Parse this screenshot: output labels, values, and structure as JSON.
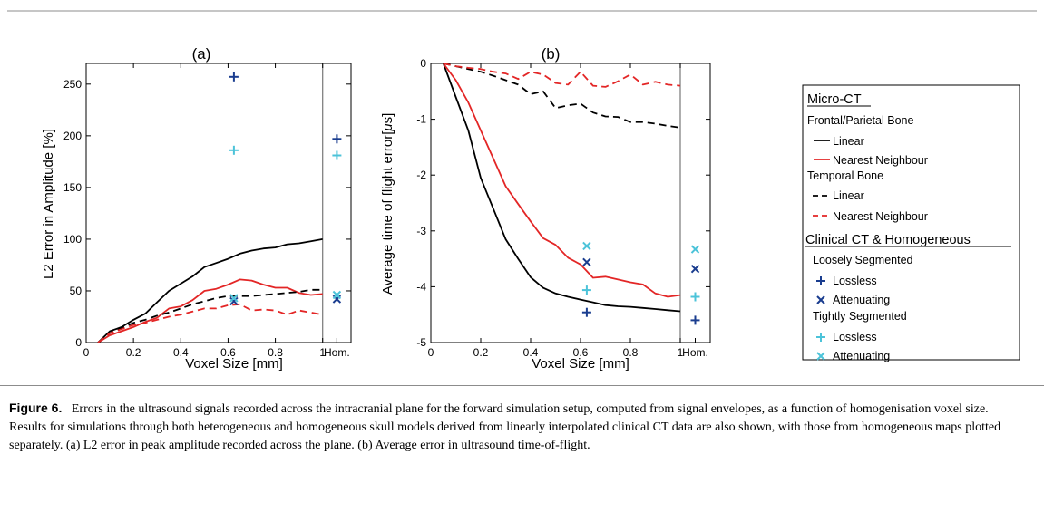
{
  "colors": {
    "dark_blue": "#1a3d8f",
    "light_blue": "#4cc3d9",
    "red": "#e32626",
    "black": "#000000"
  },
  "chart_data": [
    {
      "type": "line",
      "title": "(a)",
      "xlabel": "Voxel Size [mm]",
      "ylabel": "L2 Error in Amplitude [%]",
      "xlim": [
        0,
        1.12
      ],
      "ylim": [
        0,
        270
      ],
      "xticks": [
        0,
        0.2,
        0.4,
        0.6,
        0.8,
        1
      ],
      "xtick_labels": [
        "0",
        "0.2",
        "0.4",
        "0.6",
        "0.8",
        "1"
      ],
      "extra_xtick_label": "Hom.",
      "hom_x": 1.06,
      "yticks": [
        0,
        50,
        100,
        150,
        200,
        250
      ],
      "ytick_labels": [
        "0",
        "50",
        "100",
        "150",
        "200",
        "250"
      ],
      "series": [
        {
          "group": "Frontal/Parietal Bone",
          "name": "Linear",
          "color": "#000000",
          "dash": false,
          "x": [
            0.05,
            0.1,
            0.15,
            0.2,
            0.25,
            0.3,
            0.35,
            0.4,
            0.45,
            0.5,
            0.55,
            0.6,
            0.65,
            0.7,
            0.75,
            0.8,
            0.85,
            0.9,
            0.95,
            1.0
          ],
          "y": [
            0,
            11,
            15,
            22,
            28,
            39,
            50,
            57,
            64,
            73,
            77,
            81,
            86,
            89,
            91,
            92,
            95,
            96,
            98,
            100
          ]
        },
        {
          "group": "Frontal/Parietal Bone",
          "name": "Nearest Neighbour",
          "color": "#e32626",
          "dash": false,
          "x": [
            0.05,
            0.1,
            0.15,
            0.2,
            0.25,
            0.3,
            0.35,
            0.4,
            0.45,
            0.5,
            0.55,
            0.6,
            0.65,
            0.7,
            0.75,
            0.8,
            0.85,
            0.9,
            0.95,
            1.0
          ],
          "y": [
            0,
            7,
            11,
            15,
            20,
            24,
            33,
            35,
            41,
            50,
            52,
            56,
            61,
            60,
            56,
            53,
            53,
            48,
            46,
            47
          ]
        },
        {
          "group": "Temporal Bone",
          "name": "Linear",
          "color": "#000000",
          "dash": true,
          "x": [
            0.05,
            0.1,
            0.15,
            0.2,
            0.25,
            0.3,
            0.35,
            0.4,
            0.45,
            0.5,
            0.55,
            0.6,
            0.65,
            0.7,
            0.75,
            0.8,
            0.85,
            0.9,
            0.95,
            1.0
          ],
          "y": [
            0,
            9,
            14,
            19,
            22,
            26,
            29,
            33,
            37,
            40,
            43,
            45,
            45,
            45,
            46,
            47,
            48,
            49,
            51,
            51
          ]
        },
        {
          "group": "Temporal Bone",
          "name": "Nearest Neighbour",
          "color": "#e32626",
          "dash": true,
          "x": [
            0.05,
            0.1,
            0.15,
            0.2,
            0.25,
            0.3,
            0.35,
            0.4,
            0.45,
            0.5,
            0.55,
            0.6,
            0.65,
            0.7,
            0.75,
            0.8,
            0.85,
            0.9,
            0.95,
            1.0
          ],
          "y": [
            0,
            9,
            13,
            17,
            19,
            22,
            25,
            27,
            30,
            33,
            33,
            36,
            37,
            31,
            32,
            31,
            27,
            31,
            29,
            27
          ]
        }
      ],
      "points": [
        {
          "group": "Loosely Segmented",
          "name": "Lossless",
          "marker": "plus",
          "color": "#1a3d8f",
          "x": 0.625,
          "y": 257
        },
        {
          "group": "Tightly Segmented",
          "name": "Lossless",
          "marker": "plus",
          "color": "#4cc3d9",
          "x": 0.625,
          "y": 186
        },
        {
          "group": "Loosely Segmented",
          "name": "Attenuating",
          "marker": "cross",
          "color": "#1a3d8f",
          "x": 0.625,
          "y": 40
        },
        {
          "group": "Tightly Segmented",
          "name": "Attenuating",
          "marker": "cross",
          "color": "#4cc3d9",
          "x": 0.625,
          "y": 43
        },
        {
          "group": "Loosely Segmented",
          "name": "Lossless",
          "marker": "plus",
          "color": "#1a3d8f",
          "x": 1.06,
          "y": 197
        },
        {
          "group": "Tightly Segmented",
          "name": "Lossless",
          "marker": "plus",
          "color": "#4cc3d9",
          "x": 1.06,
          "y": 181
        },
        {
          "group": "Loosely Segmented",
          "name": "Attenuating",
          "marker": "cross",
          "color": "#1a3d8f",
          "x": 1.06,
          "y": 42
        },
        {
          "group": "Tightly Segmented",
          "name": "Attenuating",
          "marker": "cross",
          "color": "#4cc3d9",
          "x": 1.06,
          "y": 46
        }
      ]
    },
    {
      "type": "line",
      "title": "(b)",
      "xlabel": "Voxel Size [mm]",
      "ylabel": "Average time of flight  error[",
      "ylabel_unit": "μ",
      "ylabel_unit_tail": "s]",
      "xlim": [
        0,
        1.12
      ],
      "ylim": [
        -5,
        0
      ],
      "xticks": [
        0,
        0.2,
        0.4,
        0.6,
        0.8,
        1
      ],
      "xtick_labels": [
        "0",
        "0.2",
        "0.4",
        "0.6",
        "0.8",
        "1"
      ],
      "extra_xtick_label": "Hom.",
      "hom_x": 1.06,
      "yticks": [
        0,
        -1,
        -2,
        -3,
        -4,
        -5
      ],
      "ytick_labels": [
        "0",
        "-1",
        "-2",
        "-3",
        "-4",
        "-5"
      ],
      "series": [
        {
          "group": "Frontal/Parietal Bone",
          "name": "Linear",
          "color": "#000000",
          "dash": false,
          "x": [
            0.05,
            0.1,
            0.15,
            0.2,
            0.25,
            0.3,
            0.35,
            0.4,
            0.45,
            0.5,
            0.55,
            0.6,
            0.65,
            0.7,
            0.75,
            0.8,
            0.85,
            0.9,
            0.95,
            1.0
          ],
          "y": [
            0,
            -0.6,
            -1.2,
            -2.05,
            -2.6,
            -3.15,
            -3.5,
            -3.83,
            -4.02,
            -4.12,
            -4.18,
            -4.23,
            -4.28,
            -4.33,
            -4.35,
            -4.36,
            -4.38,
            -4.4,
            -4.42,
            -4.44
          ]
        },
        {
          "group": "Frontal/Parietal Bone",
          "name": "Nearest Neighbour",
          "color": "#e32626",
          "dash": false,
          "x": [
            0.05,
            0.1,
            0.15,
            0.2,
            0.25,
            0.3,
            0.35,
            0.4,
            0.45,
            0.5,
            0.55,
            0.6,
            0.65,
            0.7,
            0.75,
            0.8,
            0.85,
            0.9,
            0.95,
            1.0
          ],
          "y": [
            0,
            -0.3,
            -0.7,
            -1.2,
            -1.7,
            -2.2,
            -2.52,
            -2.83,
            -3.13,
            -3.25,
            -3.48,
            -3.6,
            -3.84,
            -3.82,
            -3.87,
            -3.92,
            -3.96,
            -4.12,
            -4.18,
            -4.15
          ]
        },
        {
          "group": "Temporal Bone",
          "name": "Linear",
          "color": "#000000",
          "dash": true,
          "x": [
            0.05,
            0.1,
            0.15,
            0.2,
            0.25,
            0.3,
            0.35,
            0.4,
            0.45,
            0.5,
            0.55,
            0.6,
            0.65,
            0.7,
            0.75,
            0.8,
            0.85,
            0.9,
            0.95,
            1.0
          ],
          "y": [
            0,
            -0.05,
            -0.1,
            -0.15,
            -0.22,
            -0.3,
            -0.38,
            -0.55,
            -0.5,
            -0.8,
            -0.75,
            -0.72,
            -0.88,
            -0.95,
            -0.96,
            -1.05,
            -1.05,
            -1.08,
            -1.12,
            -1.15
          ]
        },
        {
          "group": "Temporal Bone",
          "name": "Nearest Neighbour",
          "color": "#e32626",
          "dash": true,
          "x": [
            0.05,
            0.1,
            0.15,
            0.2,
            0.25,
            0.3,
            0.35,
            0.4,
            0.45,
            0.5,
            0.55,
            0.6,
            0.65,
            0.7,
            0.75,
            0.8,
            0.85,
            0.9,
            0.95,
            1.0
          ],
          "y": [
            0,
            -0.05,
            -0.08,
            -0.1,
            -0.15,
            -0.18,
            -0.28,
            -0.15,
            -0.2,
            -0.35,
            -0.38,
            -0.15,
            -0.4,
            -0.42,
            -0.32,
            -0.2,
            -0.38,
            -0.33,
            -0.38,
            -0.4
          ]
        }
      ],
      "points": [
        {
          "group": "Tightly Segmented",
          "name": "Attenuating",
          "marker": "cross",
          "color": "#4cc3d9",
          "x": 0.625,
          "y": -3.27
        },
        {
          "group": "Loosely Segmented",
          "name": "Attenuating",
          "marker": "cross",
          "color": "#1a3d8f",
          "x": 0.625,
          "y": -3.56
        },
        {
          "group": "Tightly Segmented",
          "name": "Lossless",
          "marker": "plus",
          "color": "#4cc3d9",
          "x": 0.625,
          "y": -4.06
        },
        {
          "group": "Loosely Segmented",
          "name": "Lossless",
          "marker": "plus",
          "color": "#1a3d8f",
          "x": 0.625,
          "y": -4.46
        },
        {
          "group": "Tightly Segmented",
          "name": "Attenuating",
          "marker": "cross",
          "color": "#4cc3d9",
          "x": 1.06,
          "y": -3.33
        },
        {
          "group": "Loosely Segmented",
          "name": "Attenuating",
          "marker": "cross",
          "color": "#1a3d8f",
          "x": 1.06,
          "y": -3.68
        },
        {
          "group": "Tightly Segmented",
          "name": "Lossless",
          "marker": "plus",
          "color": "#4cc3d9",
          "x": 1.06,
          "y": -4.18
        },
        {
          "group": "Loosely Segmented",
          "name": "Lossless",
          "marker": "plus",
          "color": "#1a3d8f",
          "x": 1.06,
          "y": -4.6
        }
      ]
    }
  ],
  "legend": {
    "placement": "right",
    "heading_micro": "Micro-CT",
    "group_frontal": "Frontal/Parietal Bone",
    "frontal_linear": "Linear",
    "frontal_nn": "Nearest Neighbour",
    "group_temporal": "Temporal Bone",
    "temporal_linear": "Linear",
    "temporal_nn": "Nearest Neighbour",
    "heading_clinical": "Clinical CT & Homogeneous",
    "group_loose": "Loosely Segmented",
    "loose_lossless": "Lossless",
    "loose_atten": "Attenuating",
    "group_tight": "Tightly Segmented",
    "tight_lossless": "Lossless",
    "tight_atten": "Attenuating"
  },
  "caption": {
    "label": "Figure 6.",
    "text": "Errors in the ultrasound signals recorded across the intracranial plane for the forward simulation setup, computed from signal envelopes, as a function of homogenisation voxel size. Results for simulations through both heterogeneous and homogeneous skull models derived from linearly interpolated clinical CT data are also shown, with those from homogeneous maps plotted separately. (a) L2 error in peak amplitude recorded across the plane. (b) Average error in ultrasound time-of-flight."
  }
}
